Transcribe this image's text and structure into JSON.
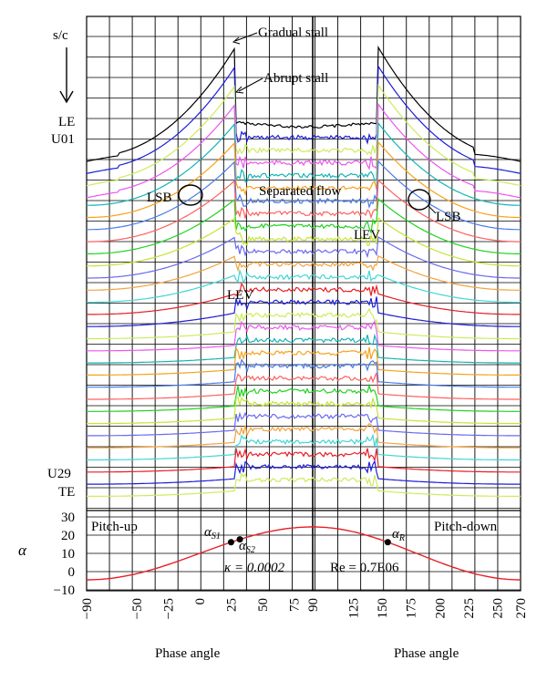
{
  "chart_data": {
    "type": "line",
    "description_labels": {
      "sc": "s/c",
      "le": "LE",
      "u01": "U01",
      "u29": "U29",
      "te": "TE",
      "alpha_axis": "α",
      "pitch_up": "Pitch-up",
      "pitch_down": "Pitch-down",
      "gradual_stall": "Gradual stall",
      "abrupt_stall": "Abrupt stall",
      "separated_flow": "Separated flow",
      "lsb": "LSB",
      "lev": "LEV",
      "alpha_s1": "α",
      "alpha_s1_sub": "S1",
      "alpha_s2": "α",
      "alpha_s2_sub": "S2",
      "alpha_r": "α",
      "alpha_r_sub": "R",
      "kappa_text": "κ = 0.0002",
      "re_text": "Re = 0.7E06"
    },
    "xlabel_left": "Phase angle",
    "xlabel_right": "Phase angle",
    "x_ticks_left": [
      "−90",
      "−50",
      "−25",
      "0",
      "25",
      "50",
      "75",
      "90"
    ],
    "x_ticks_right": [
      "125",
      "150",
      "175",
      "200",
      "225",
      "250",
      "270"
    ],
    "alpha_axis": {
      "ticks": [
        "30",
        "20",
        "10",
        "0",
        "−10"
      ],
      "ylim": [
        -10,
        30
      ]
    },
    "alpha_curve": {
      "mean": 10,
      "amplitude": 14.5,
      "stall_points": [
        25,
        32
      ],
      "reattach_point": 155
    },
    "trace_count": 29,
    "trace_colors": [
      "#000000",
      "#e81e25",
      "#1d1ddb",
      "#ccec5c",
      "#ee55ee",
      "#15b4b4",
      "#f7a21a",
      "#4a7be6",
      "#ff6060",
      "#1fd31f",
      "#c3e632",
      "#6a6af0",
      "#f3a33d",
      "#40d6d6"
    ]
  }
}
